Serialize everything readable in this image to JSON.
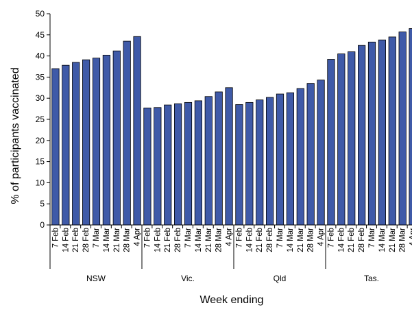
{
  "chart_data": {
    "type": "bar",
    "ylabel": "% of participants vaccinated",
    "xlabel": "Week ending",
    "ylim": [
      0,
      50
    ],
    "yticks": [
      0,
      5,
      10,
      15,
      20,
      25,
      30,
      35,
      40,
      45,
      50
    ],
    "bar_color": "#3F5AA8",
    "weeks": [
      "7 Feb",
      "14 Feb",
      "21 Feb",
      "28 Feb",
      "7 Mar",
      "14 Mar",
      "21 Mar",
      "28 Mar",
      "4 Apr"
    ],
    "groups": [
      {
        "name": "NSW",
        "values": [
          37.0,
          37.8,
          38.5,
          39.1,
          39.5,
          40.2,
          41.2,
          43.5,
          44.6
        ]
      },
      {
        "name": "Vic.",
        "values": [
          27.7,
          27.8,
          28.4,
          28.7,
          29.0,
          29.4,
          30.4,
          31.5,
          32.5
        ]
      },
      {
        "name": "Qld",
        "values": [
          28.5,
          29.0,
          29.6,
          30.2,
          31.0,
          31.3,
          32.3,
          33.5,
          34.3
        ]
      },
      {
        "name": "Tas.",
        "values": [
          39.2,
          40.5,
          41.0,
          42.5,
          43.3,
          43.8,
          44.5,
          45.7,
          46.5
        ]
      }
    ]
  }
}
